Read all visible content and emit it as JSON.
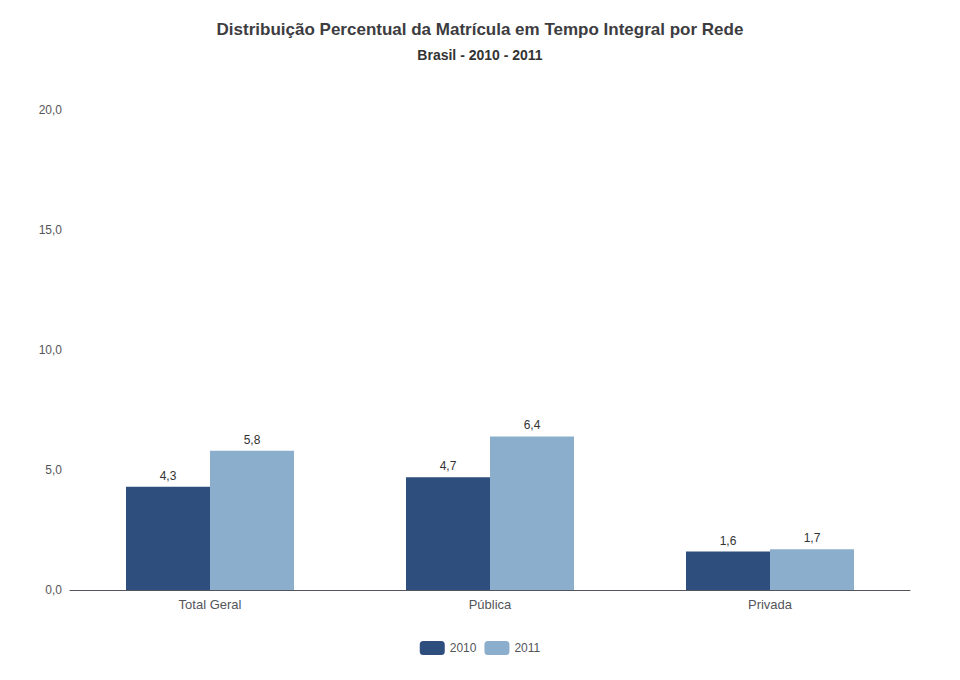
{
  "chart_data": {
    "type": "bar",
    "title": "Distribuição Percentual da Matrícula em Tempo Integral por Rede",
    "subtitle": "Brasil - 2010 - 2011",
    "categories": [
      "Total Geral",
      "Pública",
      "Privada"
    ],
    "series": [
      {
        "name": "2010",
        "color": "#2E4E7E",
        "values": [
          4.3,
          4.7,
          1.6
        ],
        "value_labels": [
          "4,3",
          "4,7",
          "1,6"
        ]
      },
      {
        "name": "2011",
        "color": "#8BAECC",
        "values": [
          5.8,
          6.4,
          1.7
        ],
        "value_labels": [
          "5,8",
          "6,4",
          "1,7"
        ]
      }
    ],
    "ylim": [
      0,
      20
    ],
    "yticks": [
      {
        "value": 0,
        "label": "0,0"
      },
      {
        "value": 5,
        "label": "5,0"
      },
      {
        "value": 10,
        "label": "10,0"
      },
      {
        "value": 15,
        "label": "15,0"
      },
      {
        "value": 20,
        "label": "20,0"
      }
    ],
    "grid": false,
    "legend": "bottom",
    "data_labels": true
  }
}
